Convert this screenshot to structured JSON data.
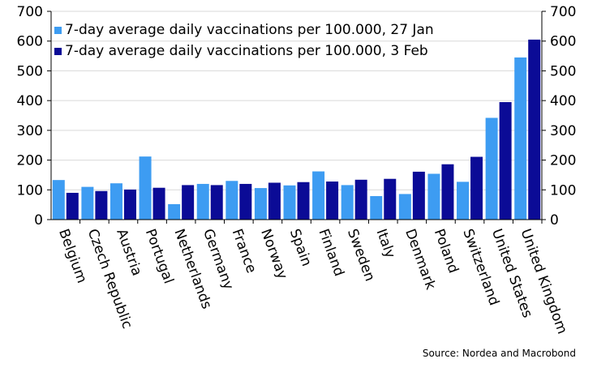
{
  "chart_data": {
    "type": "bar",
    "categories": [
      "Belgium",
      "Czech Republic",
      "Austria",
      "Portugal",
      "Netherlands",
      "Germany",
      "France",
      "Norway",
      "Spain",
      "Finland",
      "Sweden",
      "Italy",
      "Denmark",
      "Poland",
      "Switzerland",
      "United States",
      "United Kingdom"
    ],
    "series": [
      {
        "name": "7-day average daily vaccinations per 100.000, 27 Jan",
        "color": "#3d9cf2",
        "values": [
          133,
          110,
          122,
          212,
          52,
          120,
          130,
          106,
          115,
          162,
          116,
          79,
          86,
          154,
          127,
          342,
          545
        ]
      },
      {
        "name": "7-day average daily vaccinations per 100.000, 3 Feb",
        "color": "#0b0b96",
        "values": [
          90,
          96,
          101,
          107,
          116,
          116,
          120,
          124,
          126,
          128,
          134,
          137,
          161,
          186,
          211,
          395,
          605
        ]
      }
    ],
    "ylim": [
      0,
      700
    ],
    "yticks": [
      0,
      100,
      200,
      300,
      400,
      500,
      600,
      700
    ],
    "grid": true,
    "legend": "top-left",
    "source": "Source: Nordea and Macrobond"
  }
}
